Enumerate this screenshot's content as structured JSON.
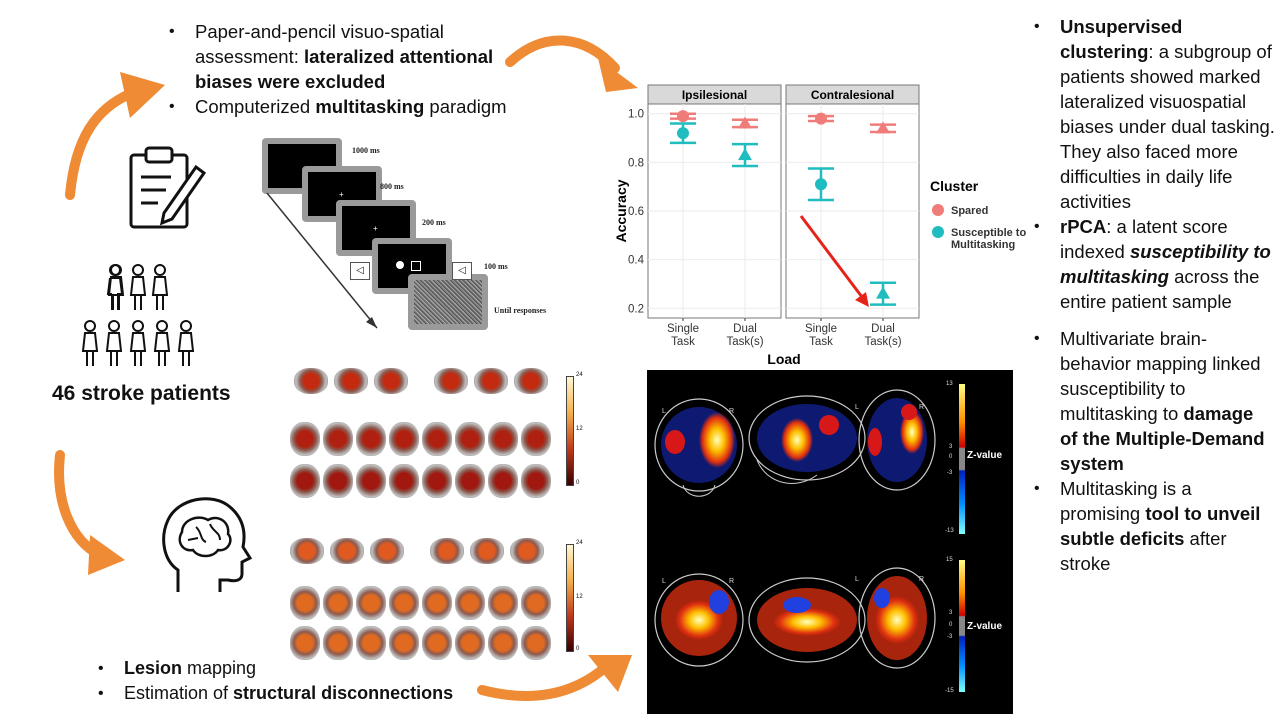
{
  "top_bullets": [
    {
      "parts": [
        {
          "t": "Paper-and-pencil visuo-spatial assessment: ",
          "s": ""
        },
        {
          "t": "lateralized attentional biases were excluded",
          "s": "hl"
        }
      ]
    },
    {
      "parts": [
        {
          "t": "Computerized ",
          "s": ""
        },
        {
          "t": "multitasking",
          "s": "hl"
        },
        {
          "t": " paradigm",
          "s": ""
        }
      ]
    }
  ],
  "patients_label": "46 stroke patients",
  "bottom_bullets": [
    {
      "parts": [
        {
          "t": "Lesion",
          "s": "hl"
        },
        {
          "t": " mapping",
          "s": ""
        }
      ]
    },
    {
      "parts": [
        {
          "t": "Estimation of ",
          "s": ""
        },
        {
          "t": "structural disconnections",
          "s": "hl"
        }
      ]
    }
  ],
  "right_bullets": [
    {
      "parts": [
        {
          "t": "Unsupervised clustering",
          "s": "hl"
        },
        {
          "t": ": a subgroup of patients showed marked lateralized visuospatial biases under dual tasking. They also faced more difficulties in daily life activities",
          "s": ""
        }
      ]
    },
    {
      "parts": [
        {
          "t": "rPCA",
          "s": "hl"
        },
        {
          "t": ": a latent score indexed ",
          "s": ""
        },
        {
          "t": "susceptibility to multitasking",
          "s": "hli"
        },
        {
          "t": " across the entire patient sample",
          "s": ""
        }
      ]
    },
    {
      "parts": [
        {
          "t": "Multivariate brain-behavior mapping linked susceptibility to multitasking to ",
          "s": ""
        },
        {
          "t": "damage of the Multiple-Demand system",
          "s": "hl"
        }
      ]
    },
    {
      "parts": [
        {
          "t": "Multitasking is a promising ",
          "s": ""
        },
        {
          "t": "tool to unveil subtle deficits",
          "s": "hl"
        },
        {
          "t": " after stroke",
          "s": ""
        }
      ]
    }
  ],
  "paradigm": {
    "timings": [
      "1000 ms",
      "800 ms",
      "200 ms",
      "100 ms",
      "Until responses"
    ]
  },
  "lesion_colorbar": {
    "ticks": [
      "24",
      "12",
      "0"
    ]
  },
  "disconnection_colorbar": {
    "ticks": [
      "24",
      "12",
      "0"
    ]
  },
  "brain_maps": {
    "top": {
      "orient": [
        "L",
        "R",
        "L",
        "R"
      ],
      "ticks": [
        "13",
        "3",
        "0",
        "-3",
        "-13"
      ],
      "label": "Z-value"
    },
    "bottom": {
      "orient": [
        "L",
        "R",
        "L",
        "R"
      ],
      "ticks": [
        "15",
        "3",
        "0",
        "-3",
        "-15"
      ],
      "label": "Z-value"
    }
  },
  "chart_data": {
    "type": "scatter",
    "panels": [
      "Ipsilesional",
      "Contralesional"
    ],
    "categories": [
      "Single Task",
      "Dual Task(s)"
    ],
    "category_lines": [
      [
        "Single",
        "Task"
      ],
      [
        "Dual",
        "Task(s)"
      ]
    ],
    "xlabel": "Load",
    "ylabel": "Accuracy",
    "ylim": [
      0.16,
      1.04
    ],
    "yticks": [
      "0.2",
      "0.4",
      "0.6",
      "0.8",
      "1.0"
    ],
    "legend_title": "Cluster",
    "legend_position": "right",
    "series": [
      {
        "name": "Spared",
        "color": "#f07c7a",
        "values": {
          "Ipsilesional": [
            0.99,
            0.96
          ],
          "Contralesional": [
            0.98,
            0.94
          ]
        },
        "errors": {
          "Ipsilesional": [
            0.01,
            0.015
          ],
          "Contralesional": [
            0.01,
            0.015
          ]
        }
      },
      {
        "name": "Susceptible to Multitasking",
        "color": "#1fbcc0",
        "values": {
          "Ipsilesional": [
            0.92,
            0.83
          ],
          "Contralesional": [
            0.71,
            0.26
          ]
        },
        "errors": {
          "Ipsilesional": [
            0.04,
            0.045
          ],
          "Contralesional": [
            0.065,
            0.045
          ]
        }
      }
    ],
    "legend_labels": [
      [
        "Spared"
      ],
      [
        "Susceptible to",
        "Multitasking"
      ]
    ]
  },
  "colors": {
    "accent_orange": "#ef8a35",
    "highlight_arrow": "#e5231b"
  }
}
